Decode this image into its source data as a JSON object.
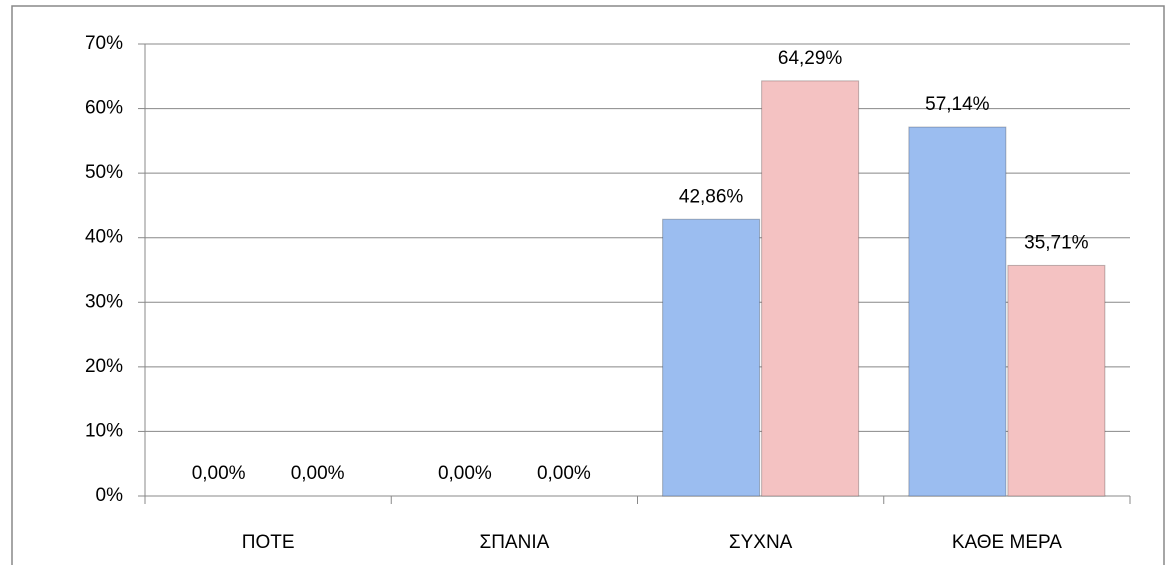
{
  "chart_data": {
    "type": "bar",
    "categories": [
      "ΠΟΤΕ",
      "ΣΠΑΝΙΑ",
      "ΣΥΧΝΑ",
      "ΚΑΘΕ ΜΕΡΑ"
    ],
    "series": [
      {
        "color": "#9bbdf0",
        "values": [
          0,
          0,
          42.86,
          57.14
        ],
        "value_labels": [
          "0,00%",
          "0,00%",
          "42,86%",
          "57,14%"
        ]
      },
      {
        "color": "#f4c2c2",
        "values": [
          0,
          0,
          64.29,
          35.71
        ],
        "value_labels": [
          "0,00%",
          "0,00%",
          "64,29%",
          "35,71%"
        ]
      }
    ],
    "ylim": [
      0,
      70
    ],
    "yticks": [
      {
        "value": 0,
        "label": "0%"
      },
      {
        "value": 10,
        "label": "10%"
      },
      {
        "value": 20,
        "label": "20%"
      },
      {
        "value": 30,
        "label": "30%"
      },
      {
        "value": 40,
        "label": "40%"
      },
      {
        "value": 50,
        "label": "50%"
      },
      {
        "value": 60,
        "label": "60%"
      },
      {
        "value": 70,
        "label": "70%"
      }
    ],
    "grid": true
  }
}
